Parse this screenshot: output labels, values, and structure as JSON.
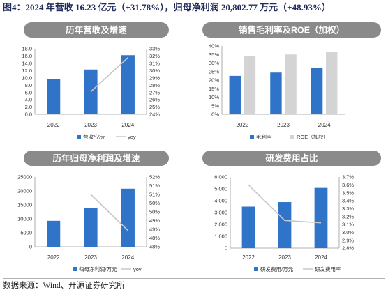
{
  "figure_title": "图4：2024 年营收 16.23 亿元（+31.78%），归母净利润 20,802.77 万元（+48.93%）",
  "source": "数据来源：Wind、开源证券研究所",
  "colors": {
    "bar": "#2f74c8",
    "line": "#c8c8c8",
    "banner": "#8a8a8a",
    "secondary_bar": "#d4d4d4"
  },
  "chart_data": [
    {
      "type": "bar",
      "title": "历年营收及增速",
      "categories": [
        "2022",
        "2023",
        "2024"
      ],
      "series": [
        {
          "name": "营收/亿元",
          "kind": "bar",
          "axis": "left",
          "values": [
            9.6,
            12.3,
            16.23
          ]
        },
        {
          "name": "yoy",
          "kind": "line",
          "axis": "right",
          "values": [
            null,
            27.1,
            31.78
          ]
        }
      ],
      "ylim": [
        0,
        18
      ],
      "yticks": [
        "0.0",
        "2.0",
        "4.0",
        "6.0",
        "8.0",
        "10.0",
        "12.0",
        "14.0",
        "16.0",
        "18.0"
      ],
      "y2lim": [
        24,
        33
      ],
      "y2ticks": [
        "24%",
        "25%",
        "26%",
        "27%",
        "28%",
        "29%",
        "30%",
        "31%",
        "32%",
        "33%"
      ],
      "legend": "bottom"
    },
    {
      "type": "bar",
      "title": "销售毛利率及ROE（加权）",
      "categories": [
        "2022",
        "2023",
        "2024"
      ],
      "series": [
        {
          "name": "毛利率",
          "kind": "bar",
          "axis": "left",
          "values": [
            22.5,
            24.4,
            27.3
          ]
        },
        {
          "name": "ROE（加权）",
          "kind": "bar",
          "axis": "left",
          "values": [
            34.3,
            35.0,
            36.3
          ]
        }
      ],
      "ylim": [
        0,
        40
      ],
      "yticks": [
        "0%",
        "5%",
        "10%",
        "15%",
        "20%",
        "25%",
        "30%",
        "35%",
        "40%"
      ],
      "legend": "bottom"
    },
    {
      "type": "bar",
      "title": "历年归母净利润及增速",
      "categories": [
        "2022",
        "2023",
        "2024"
      ],
      "series": [
        {
          "name": "归母净利润/万元",
          "kind": "bar",
          "axis": "left",
          "values": [
            9300,
            13970,
            20802.77
          ]
        },
        {
          "name": "yoy",
          "kind": "line",
          "axis": "right",
          "values": [
            null,
            51.0,
            48.93
          ]
        }
      ],
      "ylim": [
        0,
        25000
      ],
      "yticks": [
        "0",
        "5000",
        "10000",
        "15000",
        "20000",
        "25000"
      ],
      "y2lim": [
        48,
        52
      ],
      "y2ticks": [
        "48%",
        "48%",
        "49%",
        "49%",
        "50%",
        "50%",
        "51%",
        "51%",
        "52%"
      ],
      "legend": "bottom"
    },
    {
      "type": "bar",
      "title": "研发费用占比",
      "categories": [
        "2022",
        "2023",
        "2024"
      ],
      "series": [
        {
          "name": "研发费用/万元",
          "kind": "bar",
          "axis": "left",
          "values": [
            3500,
            3880,
            5080
          ]
        },
        {
          "name": "研发费用率",
          "kind": "line",
          "axis": "right",
          "values": [
            3.6,
            3.15,
            3.12
          ]
        }
      ],
      "ylim": [
        0,
        6000
      ],
      "yticks": [
        "0",
        "1,000",
        "2,000",
        "3,000",
        "4,000",
        "5,000",
        "6,000"
      ],
      "y2lim": [
        2.8,
        3.7
      ],
      "y2ticks": [
        "2.8%",
        "2.9%",
        "3.0%",
        "3.1%",
        "3.2%",
        "3.3%",
        "3.4%",
        "3.5%",
        "3.6%",
        "3.7%"
      ],
      "legend": "bottom"
    }
  ]
}
